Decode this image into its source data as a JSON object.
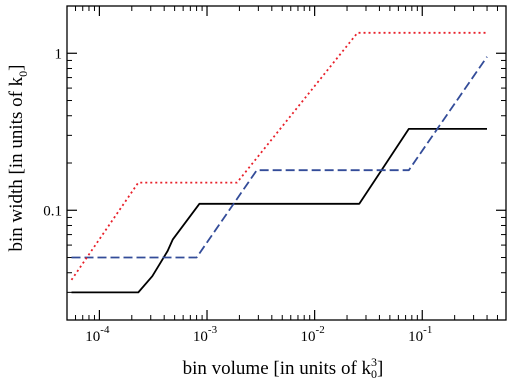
{
  "chart_data": {
    "type": "line",
    "xlabel": {
      "main": "bin volume [in units of k",
      "sub": "0",
      "sup": "3",
      "close": "]"
    },
    "ylabel": {
      "main": "bin width [in units of k",
      "sub": "0",
      "close": "]"
    },
    "xscale": "log",
    "yscale": "log",
    "xlim": [
      5e-05,
      0.6
    ],
    "ylim": [
      0.02,
      2.0
    ],
    "x_ticks": [
      {
        "value": 0.0001,
        "base": "10",
        "exp": "-4"
      },
      {
        "value": 0.001,
        "base": "10",
        "exp": "-3"
      },
      {
        "value": 0.01,
        "base": "10",
        "exp": "-2"
      },
      {
        "value": 0.1,
        "base": "10",
        "exp": "-1"
      }
    ],
    "y_ticks": [
      {
        "value": 0.1,
        "label": "0.1"
      },
      {
        "value": 1,
        "label": "1"
      }
    ],
    "grid": false,
    "legend": "none",
    "series": [
      {
        "color": "#000000",
        "style": "solid",
        "x": [
          5.5e-05,
          0.00023,
          0.00031,
          0.00036,
          0.00043,
          0.00048,
          0.00085,
          0.026,
          0.075,
          0.4
        ],
        "y": [
          0.03,
          0.03,
          0.038,
          0.045,
          0.055,
          0.065,
          0.11,
          0.11,
          0.33,
          0.33
        ]
      },
      {
        "color": "#334c99",
        "style": "dashed",
        "x": [
          5.5e-05,
          0.0008,
          0.0029,
          0.075,
          0.4
        ],
        "y": [
          0.05,
          0.05,
          0.18,
          0.18,
          0.95
        ]
      },
      {
        "color": "#e8202a",
        "style": "dotted",
        "x": [
          5.5e-05,
          0.00023,
          0.0019,
          0.025,
          0.4
        ],
        "y": [
          0.036,
          0.15,
          0.15,
          1.35,
          1.35
        ]
      }
    ]
  }
}
